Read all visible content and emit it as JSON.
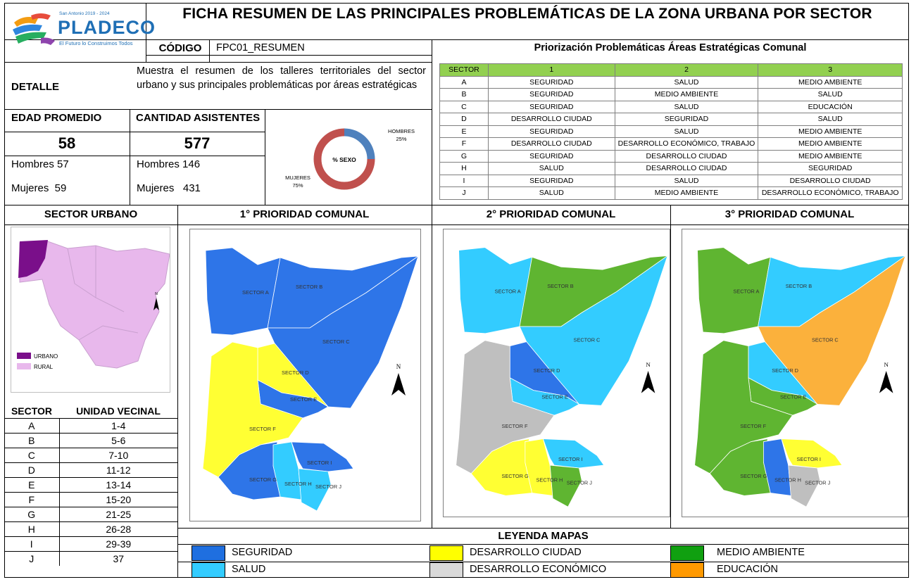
{
  "header": {
    "title": "FICHA RESUMEN DE LAS PRINCIPALES PROBLEMÁTICAS DE LA ZONA URBANA POR SECTOR",
    "logo_top": "San Antonio 2019 - 2024",
    "logo_name": "PLADECO",
    "logo_tagline": "El Futuro lo Construimos Todos",
    "code_label": "CÓDIGO",
    "code_value": "FPC01_RESUMEN"
  },
  "detail": {
    "label": "DETALLE",
    "text": "Muestra el resumen de los talleres territoriales del sector urbano y sus principales problemáticas por áreas estratégicas"
  },
  "stats": {
    "age_label": "EDAD PROMEDIO",
    "age_value": "58",
    "age_men": "Hombres 57",
    "age_women": "Mujeres  59",
    "count_label": "CANTIDAD ASISTENTES",
    "count_value": "577",
    "count_men": "Hombres 146",
    "count_women": "Mujeres   431"
  },
  "sex_chart": {
    "center_label": "% SEXO",
    "men_label": "HOMBRES",
    "men_pct": "25%",
    "women_label": "MUJERES",
    "women_pct": "75%",
    "colors": {
      "men": "#4f81bd",
      "women": "#c0504d"
    }
  },
  "chart_data": {
    "type": "pie",
    "title": "% SEXO",
    "categories": [
      "HOMBRES",
      "MUJERES"
    ],
    "values": [
      25,
      75
    ]
  },
  "priority": {
    "title": "Priorización Problemáticas Áreas Estratégicas Comunal",
    "headers": [
      "SECTOR",
      "1",
      "2",
      "3"
    ],
    "rows": [
      [
        "A",
        "SEGURIDAD",
        "SALUD",
        "MEDIO AMBIENTE"
      ],
      [
        "B",
        "SEGURIDAD",
        "MEDIO AMBIENTE",
        "SALUD"
      ],
      [
        "C",
        "SEGURIDAD",
        "SALUD",
        "EDUCACIÓN"
      ],
      [
        "D",
        "DESARROLLO CIUDAD",
        "SEGURIDAD",
        "SALUD"
      ],
      [
        "E",
        "SEGURIDAD",
        "SALUD",
        "MEDIO AMBIENTE"
      ],
      [
        "F",
        "DESARROLLO CIUDAD",
        "DESARROLLO ECONÓMICO, TRABAJO",
        "MEDIO AMBIENTE"
      ],
      [
        "G",
        "SEGURIDAD",
        "DESARROLLO CIUDAD",
        "MEDIO AMBIENTE"
      ],
      [
        "H",
        "SALUD",
        "DESARROLLO CIUDAD",
        "SEGURIDAD"
      ],
      [
        "I",
        "SEGURIDAD",
        "SALUD",
        "DESARROLLO CIUDAD"
      ],
      [
        "J",
        "SALUD",
        "MEDIO AMBIENTE",
        "DESARROLLO ECONÓMICO, TRABAJO"
      ]
    ]
  },
  "sector_urbano": {
    "title": "SECTOR URBANO",
    "legend_urban": "URBANO",
    "legend_rural": "RURAL",
    "north": "N"
  },
  "units": {
    "headers": [
      "SECTOR",
      "UNIDAD VECINAL"
    ],
    "rows": [
      [
        "A",
        "1-4"
      ],
      [
        "B",
        "5-6"
      ],
      [
        "C",
        "7-10"
      ],
      [
        "D",
        "11-12"
      ],
      [
        "E",
        "13-14"
      ],
      [
        "F",
        "15-20"
      ],
      [
        "G",
        "21-25"
      ],
      [
        "H",
        "26-28"
      ],
      [
        "I",
        "29-39"
      ],
      [
        "J",
        "37"
      ]
    ]
  },
  "maps": {
    "titles": [
      "1° PRIORIDAD COMUNAL",
      "2° PRIORIDAD COMUNAL",
      "3° PRIORIDAD COMUNAL"
    ],
    "sector_labels": {
      "A": "SECTOR A",
      "B": "SECTOR B",
      "C": "SECTOR C",
      "D": "SECTOR D",
      "E": "SECTOR E",
      "F": "SECTOR F",
      "G": "SECTOR G",
      "H": "SECTOR H",
      "I": "SECTOR I",
      "J": "SECTOR J"
    },
    "north": "N",
    "fills": [
      {
        "A": "#2e75e8",
        "B": "#2e75e8",
        "C": "#2e75e8",
        "D": "#ffff33",
        "E": "#2e75e8",
        "F": "#ffff33",
        "G": "#2e75e8",
        "H": "#33ccff",
        "I": "#2e75e8",
        "J": "#33ccff"
      },
      {
        "A": "#33ccff",
        "B": "#5fb531",
        "C": "#33ccff",
        "D": "#2e75e8",
        "E": "#33ccff",
        "F": "#bfbfbf",
        "G": "#ffff33",
        "H": "#ffff33",
        "I": "#33ccff",
        "J": "#5fb531"
      },
      {
        "A": "#5fb531",
        "B": "#33ccff",
        "C": "#fbb13c",
        "D": "#33ccff",
        "E": "#5fb531",
        "F": "#5fb531",
        "G": "#5fb531",
        "H": "#2e75e8",
        "I": "#ffff33",
        "J": "#bfbfbf"
      }
    ]
  },
  "legend": {
    "title": "LEYENDA MAPAS",
    "items": [
      {
        "label": "SEGURIDAD",
        "color": "#1f6fe0"
      },
      {
        "label": "DESARROLLO CIUDAD",
        "color": "#ffff00"
      },
      {
        "label": "MEDIO AMBIENTE",
        "color": "#10a010"
      },
      {
        "label": "SALUD",
        "color": "#33ccff"
      },
      {
        "label": "DESARROLLO ECONÓMICO",
        "color": "#d9d9d9"
      },
      {
        "label": "EDUCACIÓN",
        "color": "#ff9900"
      }
    ]
  }
}
